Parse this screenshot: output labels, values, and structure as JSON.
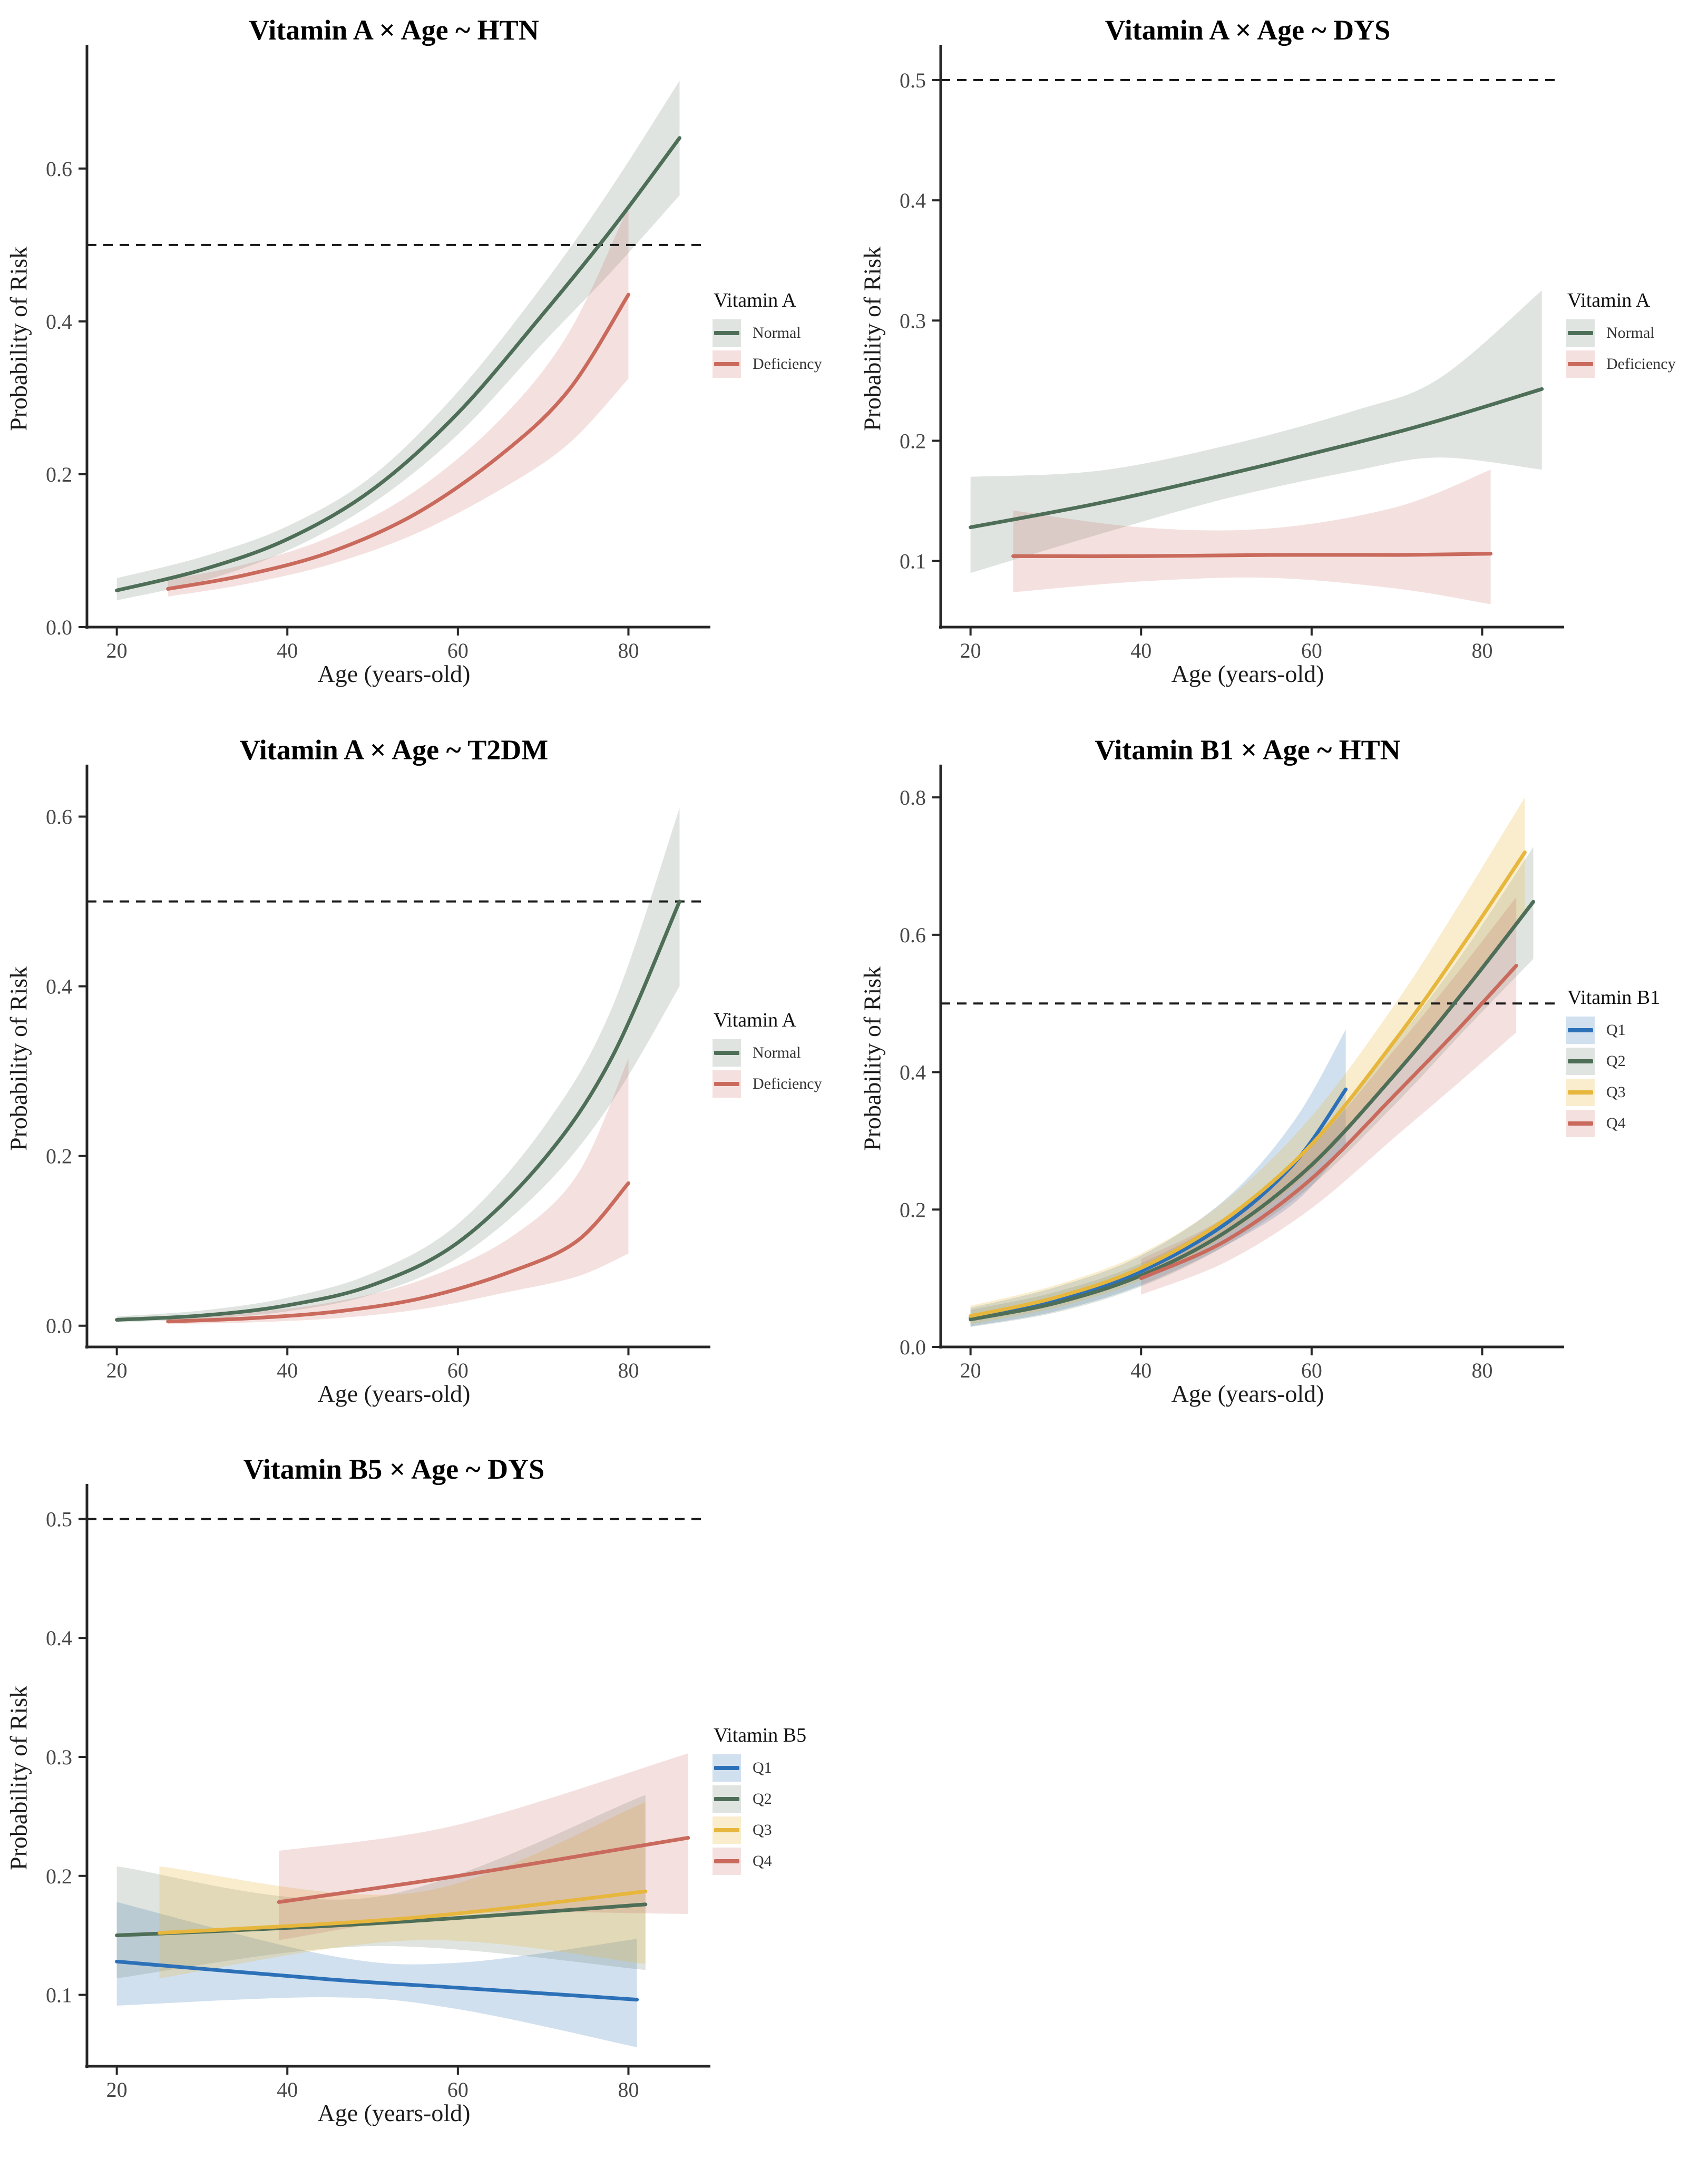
{
  "figure": {
    "background": "#ffffff",
    "refline_color": "#1a1a1a",
    "axis_color": "#262626",
    "tick_text_color": "#474747"
  },
  "chart_data": [
    {
      "type": "line",
      "title": "Vitamin A × Age ~ HTN",
      "xlabel": "Age (years-old)",
      "ylabel": "Probability of Risk",
      "xlim": [
        16.5,
        88.5
      ],
      "ylim": [
        0,
        0.755
      ],
      "xticks": [
        20,
        40,
        60,
        80
      ],
      "xtick_labels": [
        "20",
        "40",
        "60",
        "80"
      ],
      "yticks": [
        0,
        0.2,
        0.4,
        0.6
      ],
      "ytick_labels": [
        "0.0",
        "0.2",
        "0.4",
        "0.6"
      ],
      "refline": 0.5,
      "grid": false,
      "legend": {
        "title": "Vitamin A",
        "position": "right",
        "entries": [
          {
            "label": "Normal"
          },
          {
            "label": "Deficiency"
          }
        ]
      },
      "series": [
        {
          "name": "Normal",
          "color": "#4e6e58",
          "ribbon_color": "rgba(94,122,98,0.20)",
          "x": [
            20,
            30,
            40,
            50,
            60,
            70,
            78,
            86
          ],
          "y": [
            0.048,
            0.075,
            0.115,
            0.18,
            0.28,
            0.41,
            0.52,
            0.64
          ],
          "lo": [
            0.035,
            0.06,
            0.1,
            0.162,
            0.252,
            0.372,
            0.465,
            0.565
          ],
          "hi": [
            0.064,
            0.092,
            0.132,
            0.198,
            0.308,
            0.448,
            0.575,
            0.715
          ]
        },
        {
          "name": "Deficiency",
          "color": "#c96a5d",
          "ribbon_color": "rgba(201,106,93,0.20)",
          "x": [
            26,
            35,
            45,
            55,
            65,
            73,
            80
          ],
          "y": [
            0.05,
            0.068,
            0.098,
            0.148,
            0.225,
            0.31,
            0.435
          ],
          "lo": [
            0.04,
            0.056,
            0.082,
            0.122,
            0.18,
            0.24,
            0.325
          ],
          "hi": [
            0.062,
            0.082,
            0.118,
            0.178,
            0.272,
            0.385,
            0.55
          ]
        }
      ]
    },
    {
      "type": "line",
      "title": "Vitamin A × Age ~ DYS",
      "xlabel": "Age (years-old)",
      "ylabel": "Probability of Risk",
      "xlim": [
        16.5,
        88.5
      ],
      "ylim": [
        0.045,
        0.525
      ],
      "xticks": [
        20,
        40,
        60,
        80
      ],
      "xtick_labels": [
        "20",
        "40",
        "60",
        "80"
      ],
      "yticks": [
        0.1,
        0.2,
        0.3,
        0.4,
        0.5
      ],
      "ytick_labels": [
        "0.1",
        "0.2",
        "0.3",
        "0.4",
        "0.5"
      ],
      "refline": 0.5,
      "grid": false,
      "legend": {
        "title": "Vitamin A",
        "position": "right",
        "entries": [
          {
            "label": "Normal"
          },
          {
            "label": "Deficiency"
          }
        ]
      },
      "series": [
        {
          "name": "Normal",
          "color": "#4e6e58",
          "ribbon_color": "rgba(94,122,98,0.20)",
          "x": [
            20,
            35,
            50,
            65,
            75,
            87
          ],
          "y": [
            0.128,
            0.148,
            0.172,
            0.198,
            0.217,
            0.243
          ],
          "lo": [
            0.09,
            0.122,
            0.152,
            0.175,
            0.186,
            0.176
          ],
          "hi": [
            0.17,
            0.175,
            0.196,
            0.225,
            0.252,
            0.325
          ]
        },
        {
          "name": "Deficiency",
          "color": "#c96a5d",
          "ribbon_color": "rgba(201,106,93,0.20)",
          "x": [
            25,
            40,
            55,
            70,
            81
          ],
          "y": [
            0.104,
            0.104,
            0.105,
            0.105,
            0.106
          ],
          "lo": [
            0.074,
            0.083,
            0.086,
            0.077,
            0.064
          ],
          "hi": [
            0.142,
            0.128,
            0.127,
            0.145,
            0.176
          ]
        }
      ]
    },
    {
      "type": "line",
      "title": "Vitamin A × Age ~ T2DM",
      "xlabel": "Age (years-old)",
      "ylabel": "Probability of Risk",
      "xlim": [
        16.5,
        88.5
      ],
      "ylim": [
        -0.025,
        0.655
      ],
      "xticks": [
        20,
        40,
        60,
        80
      ],
      "xtick_labels": [
        "20",
        "40",
        "60",
        "80"
      ],
      "yticks": [
        0,
        0.2,
        0.4,
        0.6
      ],
      "ytick_labels": [
        "0.0",
        "0.2",
        "0.4",
        "0.6"
      ],
      "refline": 0.5,
      "grid": false,
      "legend": {
        "title": "Vitamin A",
        "position": "right",
        "entries": [
          {
            "label": "Normal"
          },
          {
            "label": "Deficiency"
          }
        ]
      },
      "series": [
        {
          "name": "Normal",
          "color": "#4e6e58",
          "ribbon_color": "rgba(94,122,98,0.20)",
          "x": [
            20,
            30,
            40,
            50,
            60,
            70,
            78,
            86
          ],
          "y": [
            0.007,
            0.012,
            0.024,
            0.048,
            0.098,
            0.195,
            0.315,
            0.5
          ],
          "lo": [
            0.004,
            0.008,
            0.017,
            0.037,
            0.08,
            0.163,
            0.263,
            0.4
          ],
          "hi": [
            0.011,
            0.018,
            0.033,
            0.062,
            0.12,
            0.233,
            0.373,
            0.61
          ]
        },
        {
          "name": "Deficiency",
          "color": "#c96a5d",
          "ribbon_color": "rgba(201,106,93,0.20)",
          "x": [
            26,
            36,
            46,
            56,
            66,
            74,
            80
          ],
          "y": [
            0.005,
            0.009,
            0.017,
            0.033,
            0.063,
            0.1,
            0.168
          ],
          "lo": [
            0.002,
            0.004,
            0.009,
            0.02,
            0.04,
            0.058,
            0.085
          ],
          "hi": [
            0.009,
            0.016,
            0.029,
            0.055,
            0.103,
            0.178,
            0.315
          ]
        }
      ]
    },
    {
      "type": "line",
      "title": "Vitamin B1 × Age ~ HTN",
      "xlabel": "Age (years-old)",
      "ylabel": "Probability of Risk",
      "xlim": [
        16.5,
        88.5
      ],
      "ylim": [
        0,
        0.84
      ],
      "xticks": [
        20,
        40,
        60,
        80
      ],
      "xtick_labels": [
        "20",
        "40",
        "60",
        "80"
      ],
      "yticks": [
        0,
        0.2,
        0.4,
        0.6,
        0.8
      ],
      "ytick_labels": [
        "0.0",
        "0.2",
        "0.4",
        "0.6",
        "0.8"
      ],
      "refline": 0.5,
      "grid": false,
      "legend": {
        "title": "Vitamin B1",
        "position": "right",
        "entries": [
          {
            "label": "Q1"
          },
          {
            "label": "Q2"
          },
          {
            "label": "Q3"
          },
          {
            "label": "Q4"
          }
        ]
      },
      "series": [
        {
          "name": "Q1",
          "color": "#2c71b8",
          "ribbon_color": "rgba(44,113,184,0.22)",
          "x": [
            20,
            30,
            40,
            50,
            58,
            64
          ],
          "y": [
            0.042,
            0.068,
            0.11,
            0.18,
            0.268,
            0.375
          ],
          "lo": [
            0.03,
            0.052,
            0.09,
            0.148,
            0.21,
            0.292
          ],
          "hi": [
            0.057,
            0.087,
            0.133,
            0.216,
            0.33,
            0.462
          ]
        },
        {
          "name": "Q2",
          "color": "#4e6e58",
          "ribbon_color": "rgba(94,122,98,0.20)",
          "x": [
            20,
            30,
            40,
            50,
            60,
            70,
            78,
            86
          ],
          "y": [
            0.04,
            0.064,
            0.104,
            0.168,
            0.265,
            0.4,
            0.52,
            0.648
          ],
          "lo": [
            0.029,
            0.05,
            0.088,
            0.148,
            0.235,
            0.356,
            0.462,
            0.565
          ],
          "hi": [
            0.054,
            0.08,
            0.122,
            0.19,
            0.298,
            0.446,
            0.578,
            0.728
          ]
        },
        {
          "name": "Q3",
          "color": "#e7b63c",
          "ribbon_color": "rgba(231,182,60,0.25)",
          "x": [
            20,
            30,
            40,
            50,
            60,
            70,
            78,
            85
          ],
          "y": [
            0.045,
            0.072,
            0.115,
            0.187,
            0.295,
            0.45,
            0.59,
            0.72
          ],
          "lo": [
            0.033,
            0.057,
            0.097,
            0.163,
            0.258,
            0.4,
            0.525,
            0.632
          ],
          "hi": [
            0.06,
            0.09,
            0.136,
            0.214,
            0.336,
            0.503,
            0.658,
            0.8
          ]
        },
        {
          "name": "Q4",
          "color": "#c96a5d",
          "ribbon_color": "rgba(201,106,93,0.20)",
          "x": [
            40,
            50,
            60,
            70,
            77,
            84
          ],
          "y": [
            0.1,
            0.155,
            0.245,
            0.37,
            0.46,
            0.555
          ],
          "lo": [
            0.076,
            0.124,
            0.202,
            0.308,
            0.382,
            0.458
          ],
          "hi": [
            0.128,
            0.19,
            0.292,
            0.437,
            0.543,
            0.655
          ]
        }
      ]
    },
    {
      "type": "line",
      "title": "Vitamin B5 × Age ~ DYS",
      "xlabel": "Age (years-old)",
      "ylabel": "Probability of Risk",
      "xlim": [
        16.5,
        88.5
      ],
      "ylim": [
        0.04,
        0.525
      ],
      "xticks": [
        20,
        40,
        60,
        80
      ],
      "xtick_labels": [
        "20",
        "40",
        "60",
        "80"
      ],
      "yticks": [
        0.1,
        0.2,
        0.3,
        0.4,
        0.5
      ],
      "ytick_labels": [
        "0.1",
        "0.2",
        "0.3",
        "0.4",
        "0.5"
      ],
      "refline": 0.5,
      "grid": false,
      "legend": {
        "title": "Vitamin B5",
        "position": "right",
        "entries": [
          {
            "label": "Q1"
          },
          {
            "label": "Q2"
          },
          {
            "label": "Q3"
          },
          {
            "label": "Q4"
          }
        ]
      },
      "series": [
        {
          "name": "Q1",
          "color": "#2c71b8",
          "ribbon_color": "rgba(44,113,184,0.22)",
          "x": [
            20,
            45,
            60,
            81
          ],
          "y": [
            0.128,
            0.113,
            0.106,
            0.096
          ],
          "lo": [
            0.091,
            0.098,
            0.088,
            0.056
          ],
          "hi": [
            0.178,
            0.133,
            0.127,
            0.147
          ]
        },
        {
          "name": "Q2",
          "color": "#4e6e58",
          "ribbon_color": "rgba(94,122,98,0.20)",
          "x": [
            20,
            50,
            82
          ],
          "y": [
            0.15,
            0.16,
            0.176
          ],
          "lo": [
            0.114,
            0.141,
            0.121
          ],
          "hi": [
            0.208,
            0.182,
            0.268
          ]
        },
        {
          "name": "Q3",
          "color": "#e7b63c",
          "ribbon_color": "rgba(231,182,60,0.25)",
          "x": [
            25,
            55,
            82
          ],
          "y": [
            0.152,
            0.165,
            0.187
          ],
          "lo": [
            0.114,
            0.146,
            0.126
          ],
          "hi": [
            0.208,
            0.186,
            0.262
          ]
        },
        {
          "name": "Q4",
          "color": "#c96a5d",
          "ribbon_color": "rgba(201,106,93,0.20)",
          "x": [
            39,
            60,
            87
          ],
          "y": [
            0.178,
            0.2,
            0.232
          ],
          "lo": [
            0.146,
            0.168,
            0.168
          ],
          "hi": [
            0.221,
            0.243,
            0.303
          ]
        }
      ]
    }
  ]
}
